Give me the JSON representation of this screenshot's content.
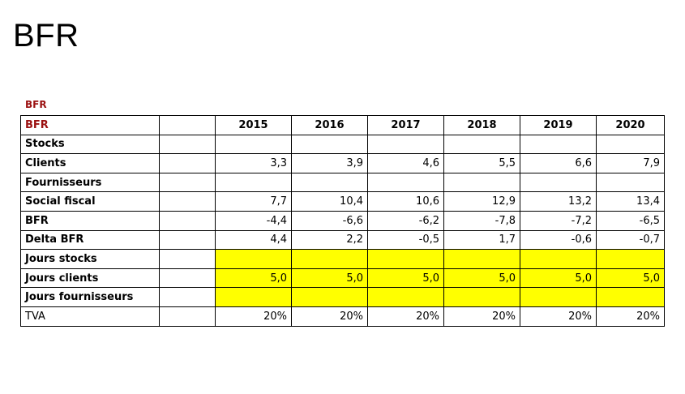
{
  "title": "BFR",
  "table": {
    "caption": "BFR",
    "header_label": "BFR",
    "years": [
      "2015",
      "2016",
      "2017",
      "2018",
      "2019",
      "2020"
    ],
    "rows": [
      {
        "label": "Stocks",
        "values": [
          "",
          "",
          "",
          "",
          "",
          ""
        ]
      },
      {
        "label": "Clients",
        "values": [
          "3,3",
          "3,9",
          "4,6",
          "5,5",
          "6,6",
          "7,9"
        ]
      },
      {
        "label": "Fournisseurs",
        "values": [
          "",
          "",
          "",
          "",
          "",
          ""
        ]
      },
      {
        "label": "Social fiscal",
        "values": [
          "7,7",
          "10,4",
          "10,6",
          "12,9",
          "13,2",
          "13,4"
        ]
      },
      {
        "label": "BFR",
        "values": [
          "-4,4",
          "-6,6",
          "-6,2",
          "-7,8",
          "-7,2",
          "-6,5"
        ]
      },
      {
        "label": "Delta BFR",
        "values": [
          "4,4",
          "2,2",
          "-0,5",
          "1,7",
          "-0,6",
          "-0,7"
        ]
      },
      {
        "label": "Jours stocks",
        "values": [
          "",
          "",
          "",
          "",
          "",
          ""
        ]
      },
      {
        "label": "Jours clients",
        "values": [
          "5,0",
          "5,0",
          "5,0",
          "5,0",
          "5,0",
          "5,0"
        ]
      },
      {
        "label": "Jours fournisseurs",
        "values": [
          "",
          "",
          "",
          "",
          "",
          ""
        ]
      },
      {
        "label": "TVA",
        "values": [
          "20%",
          "20%",
          "20%",
          "20%",
          "20%",
          "20%"
        ]
      }
    ],
    "highlight_color": "#ffff00",
    "accent_color": "#9b1010"
  }
}
